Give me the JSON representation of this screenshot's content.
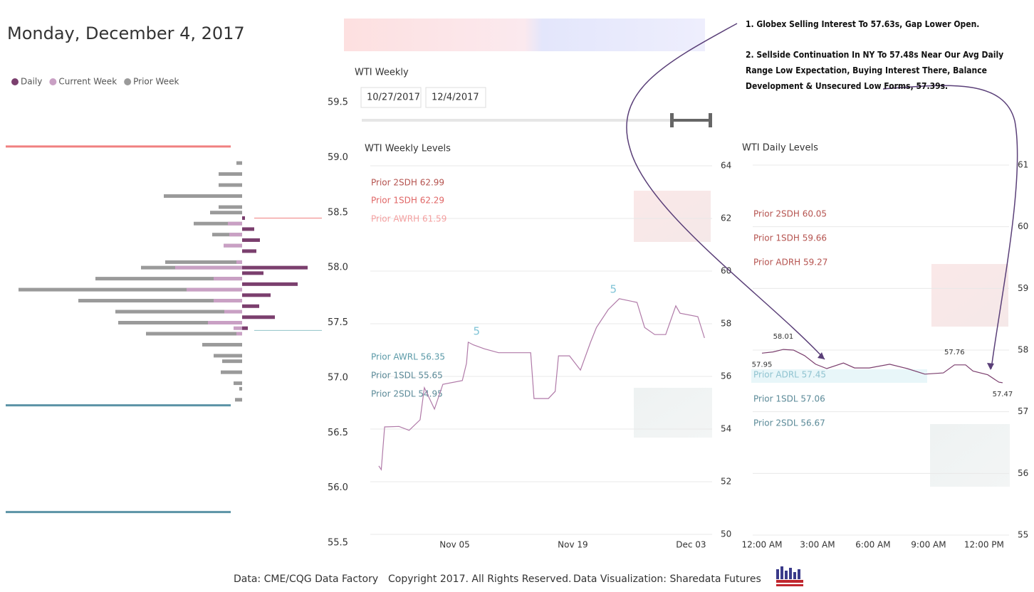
{
  "header": {
    "title": "Monday, December 4, 2017",
    "slicer_title": "WTI Weekly",
    "start_date": "10/27/2017",
    "end_date": "12/4/2017"
  },
  "notes": [
    "1. Globex Selling Interest To 57.63s, Gap Lower Open.",
    "2. Sellside Continuation In NY To 57.48s Near Our Avg Daily Range Low Expectation, Buying Interest There, Balance Development & Unsecured Low Forms, 57.39s."
  ],
  "chart_data": [
    {
      "type": "profile",
      "y": [
        58.95,
        58.9,
        58.85,
        58.8,
        58.75,
        58.7,
        58.65,
        58.6,
        58.55,
        58.5,
        58.45,
        58.4,
        58.35,
        58.3,
        58.25,
        58.2,
        58.15,
        58.1,
        58.05,
        58.0,
        57.95,
        57.9,
        57.85,
        57.8,
        57.75,
        57.7,
        57.65,
        57.6,
        57.55,
        57.5,
        57.45,
        57.4,
        57.35,
        57.3,
        57.25,
        57.2,
        57.15,
        57.1,
        57.05,
        57.0,
        56.95,
        56.9,
        56.85,
        56.8
      ],
      "series": [
        {
          "name": "Daily",
          "color": "#7b3f6e",
          "values": [
            0,
            0,
            0,
            0,
            0,
            0,
            0,
            0,
            0,
            0,
            4,
            0,
            17,
            0,
            25,
            0,
            20,
            0,
            0,
            92,
            30,
            0,
            78,
            0,
            40,
            0,
            24,
            0,
            46,
            0,
            8,
            0,
            0,
            0,
            0,
            0,
            0,
            0,
            0,
            0,
            0,
            0,
            0,
            0
          ]
        },
        {
          "name": "Current Week",
          "color": "#c9a0c4",
          "values": [
            0,
            0,
            0,
            0,
            0,
            0,
            0,
            0,
            0,
            0,
            0,
            20,
            0,
            18,
            0,
            26,
            0,
            0,
            8,
            94,
            0,
            40,
            0,
            78,
            0,
            40,
            0,
            25,
            0,
            48,
            12,
            8,
            0,
            0,
            0,
            0,
            0,
            0,
            0,
            0,
            0,
            0,
            0,
            0
          ]
        },
        {
          "name": "Prior Week",
          "color": "#9a9a9a",
          "values": [
            8,
            0,
            33,
            0,
            33,
            0,
            110,
            0,
            33,
            45,
            0,
            68,
            0,
            42,
            0,
            26,
            0,
            0,
            108,
            142,
            0,
            206,
            0,
            314,
            0,
            230,
            0,
            178,
            0,
            174,
            0,
            135,
            0,
            56,
            0,
            40,
            28,
            0,
            30,
            0,
            12,
            4,
            0,
            10
          ]
        }
      ],
      "ylim": [
        55.5,
        59.5
      ],
      "yticks": [
        55.5,
        {
          "value": 56,
          "label": "56.0"
        },
        56.5,
        {
          "value": 57,
          "label": "57.0"
        },
        57.5,
        {
          "value": 58,
          "label": "58.0"
        },
        58.5,
        {
          "value": 59,
          "label": "59.0"
        },
        59.5
      ],
      "reference_lines": [
        {
          "value": 59.1,
          "color": "#f08080",
          "side": "left"
        },
        {
          "value": 56.75,
          "color": "#5b93a6",
          "side": "left"
        },
        {
          "value": 55.78,
          "color": "#5b93a6",
          "side": "left"
        },
        {
          "value": 58.45,
          "color": "#f08080",
          "side": "right"
        },
        {
          "value": 57.43,
          "color": "#8fc3c7",
          "side": "right"
        }
      ]
    },
    {
      "type": "line",
      "title": "WTI Weekly Levels",
      "color": "#b07aa8",
      "x": [
        0,
        0.3,
        0.7,
        2.4,
        3.6,
        4.9,
        5.4,
        6.6,
        7.6,
        9.9,
        10.4,
        10.6,
        11.2,
        12.5,
        14.2,
        18,
        18.4,
        20.1,
        20.9,
        21.3,
        22.6,
        23.9,
        25.1,
        25.8,
        27.2,
        28.5,
        30.6,
        31.5,
        32.7,
        34,
        35.2,
        35.7,
        37.8,
        38.6
      ],
      "values": [
        52.6,
        52.46,
        54.08,
        54.1,
        53.95,
        54.35,
        55.57,
        54.76,
        55.7,
        55.84,
        56.5,
        57.3,
        57.2,
        57.05,
        56.9,
        56.9,
        55.16,
        55.16,
        55.43,
        56.78,
        56.78,
        56.24,
        57.3,
        57.86,
        58.54,
        58.95,
        58.81,
        57.86,
        57.59,
        57.59,
        58.68,
        58.4,
        58.27,
        57.46
      ],
      "xlim": [
        -1,
        39.5
      ],
      "xticks": [
        {
          "value": 9,
          "label": "Nov 05"
        },
        {
          "value": 23,
          "label": "Nov 19"
        },
        {
          "value": 37,
          "label": "Dec 03"
        }
      ],
      "ylim": [
        50,
        64
      ],
      "yticks": [
        50,
        52,
        54,
        56,
        58,
        60,
        62,
        64
      ],
      "grid": true,
      "markers": [
        {
          "x": 11.6,
          "y": 57.7,
          "label": "5"
        },
        {
          "x": 27.8,
          "y": 59.3,
          "label": "5"
        }
      ],
      "levels": [
        {
          "label": "Prior 2SDH 62.99",
          "color": "#b5534f"
        },
        {
          "label": "Prior 1SDH 62.29",
          "color": "#e06666"
        },
        {
          "label": "Prior AWRH 61.59",
          "color": "#f4a0a0"
        },
        {
          "label": "Prior AWRL 56.35",
          "color": "#5b9aa8"
        },
        {
          "label": "Prior 1SDL 55.65",
          "color": "#5b8a98"
        },
        {
          "label": "Prior 2SDL 54.95",
          "color": "#5b8a98"
        }
      ]
    },
    {
      "type": "line",
      "title": "WTI Daily Levels",
      "color": "#7b3f6e",
      "x": [
        0,
        0.6,
        1.15,
        1.7,
        2.3,
        2.9,
        3.5,
        4.4,
        5,
        5.8,
        6.9,
        7.85,
        8.8,
        9.8,
        10.4,
        11,
        11.4,
        12.2,
        12.8,
        13
      ],
      "values": [
        57.95,
        57.97,
        58.01,
        58.0,
        57.91,
        57.77,
        57.7,
        57.79,
        57.71,
        57.71,
        57.77,
        57.7,
        57.61,
        57.63,
        57.76,
        57.76,
        57.66,
        57.6,
        57.48,
        57.47
      ],
      "value_labels": [
        "57.95",
        null,
        "58.01",
        null,
        null,
        null,
        null,
        null,
        null,
        null,
        null,
        null,
        null,
        null,
        "57.76",
        null,
        null,
        null,
        null,
        "57.47"
      ],
      "xlim": [
        -0.5,
        13.35
      ],
      "xticks": [
        {
          "value": 0,
          "label": "12:00 AM"
        },
        {
          "value": 3,
          "label": "3:00 AM"
        },
        {
          "value": 6,
          "label": "6:00 AM"
        },
        {
          "value": 9,
          "label": "9:00 AM"
        },
        {
          "value": 12,
          "label": "12:00 PM"
        }
      ],
      "ylim": [
        55,
        61
      ],
      "yticks": [
        55,
        56,
        57,
        58,
        59,
        60,
        61
      ],
      "grid": true,
      "levels": [
        {
          "label": "Prior 2SDH 60.05",
          "color": "#b5534f"
        },
        {
          "label": "Prior 1SDH 59.66",
          "color": "#b5534f"
        },
        {
          "label": "Prior ADRH 59.27",
          "color": "#b5534f"
        },
        {
          "label": "Prior ADRL 57.45",
          "color": "#8fc3d0"
        },
        {
          "label": "Prior 1SDL 57.06",
          "color": "#5b8a98"
        },
        {
          "label": "Prior 2SDL 56.67",
          "color": "#5b8a98"
        }
      ]
    }
  ],
  "footer": [
    "Data: CME/CQG Data Factory",
    "Copyright 2017. All Rights Reserved.",
    "Data Visualization: Sharedata Futures"
  ]
}
